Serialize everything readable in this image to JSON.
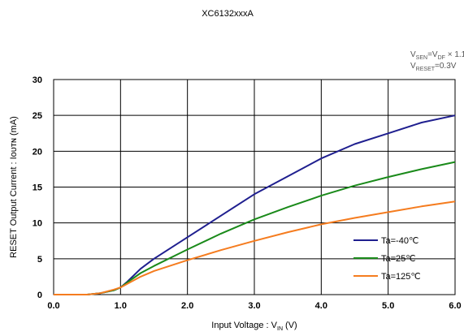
{
  "chart_data": {
    "type": "line",
    "title": "XC6132xxxA",
    "conditions": [
      {
        "main": "V",
        "sub": "SEN",
        "mid": "=V",
        "sub2": "DF",
        "tail": " × 1.1V"
      },
      {
        "main": "V",
        "sub": "RESET",
        "mid": "=0.3V",
        "sub2": "",
        "tail": ""
      }
    ],
    "xlabel": {
      "main": "Input Voltage : V",
      "sub": "IN",
      "tail": " (V)"
    },
    "ylabel": "RESET Output Current : Iᴏᴜᴛɴ (mA)",
    "xlim": [
      0,
      6
    ],
    "ylim": [
      0,
      30
    ],
    "xticks": [
      "0.0",
      "1.0",
      "2.0",
      "3.0",
      "4.0",
      "5.0",
      "6.0"
    ],
    "yticks": [
      "0",
      "5",
      "10",
      "15",
      "20",
      "25",
      "30"
    ],
    "grid": true,
    "legend_position": "bottom-right",
    "series": [
      {
        "name": "Ta=-40℃",
        "color": "#1f1f8f",
        "x": [
          0.0,
          0.5,
          0.7,
          0.9,
          1.0,
          1.1,
          1.3,
          1.5,
          2.0,
          2.5,
          3.0,
          3.5,
          4.0,
          4.5,
          5.0,
          5.5,
          6.0
        ],
        "y": [
          0.0,
          0.0,
          0.2,
          0.6,
          1.0,
          1.8,
          3.6,
          5.0,
          8.0,
          11.0,
          14.0,
          16.5,
          19.0,
          21.0,
          22.5,
          24.0,
          25.0
        ]
      },
      {
        "name": "Ta=25℃",
        "color": "#1a8a1a",
        "x": [
          0.0,
          0.5,
          0.7,
          0.9,
          1.0,
          1.1,
          1.3,
          1.5,
          2.0,
          2.5,
          3.0,
          3.5,
          4.0,
          4.5,
          5.0,
          5.5,
          6.0
        ],
        "y": [
          0.0,
          0.0,
          0.2,
          0.6,
          1.0,
          1.7,
          3.0,
          4.0,
          6.3,
          8.5,
          10.5,
          12.2,
          13.8,
          15.2,
          16.4,
          17.5,
          18.5
        ]
      },
      {
        "name": "Ta=125℃",
        "color": "#f57c1f",
        "x": [
          0.0,
          0.5,
          0.7,
          0.9,
          1.0,
          1.1,
          1.3,
          1.5,
          2.0,
          2.5,
          3.0,
          3.5,
          4.0,
          4.5,
          5.0,
          5.5,
          6.0
        ],
        "y": [
          0.0,
          0.0,
          0.2,
          0.7,
          1.0,
          1.5,
          2.5,
          3.3,
          4.8,
          6.2,
          7.5,
          8.7,
          9.8,
          10.7,
          11.5,
          12.3,
          13.0
        ]
      }
    ]
  }
}
